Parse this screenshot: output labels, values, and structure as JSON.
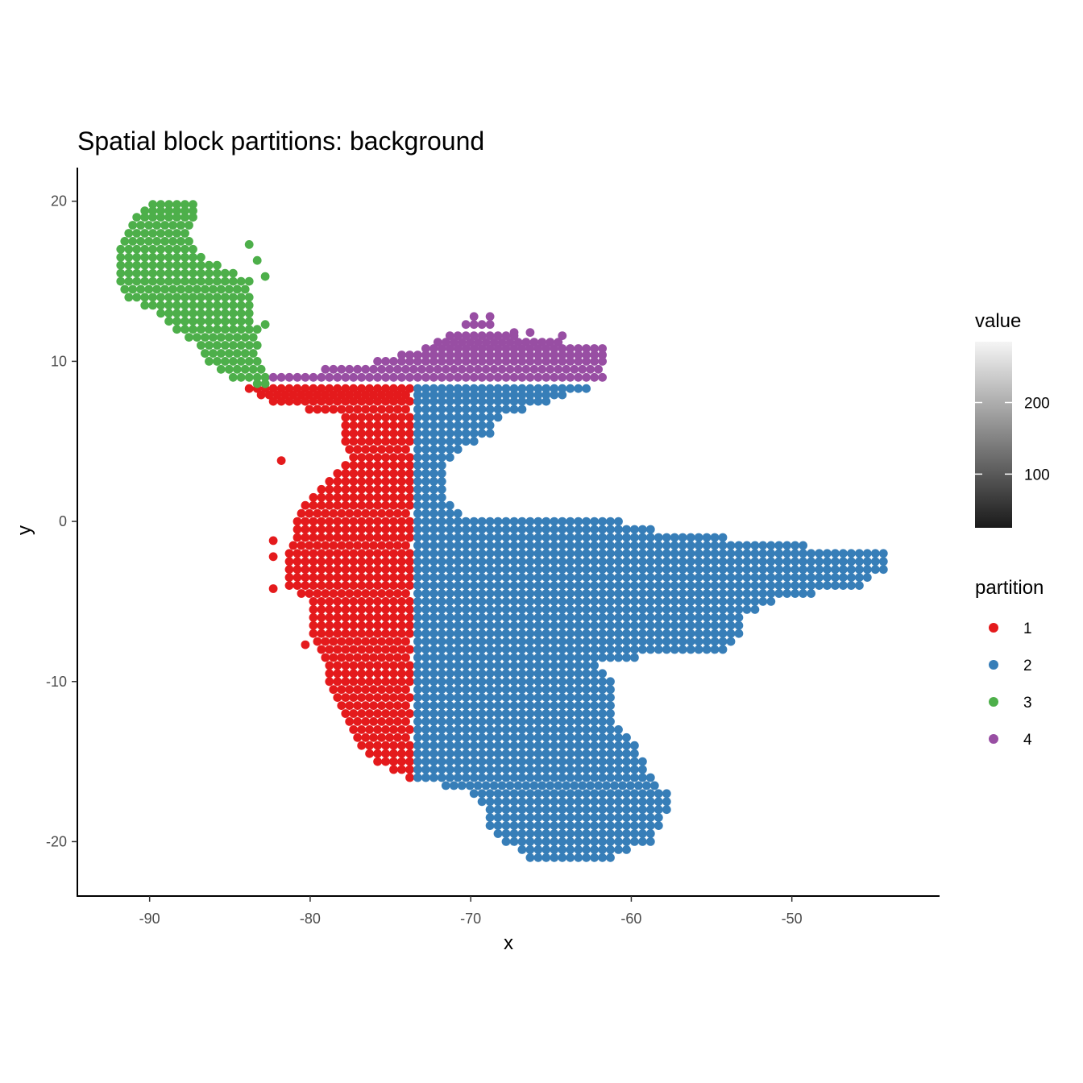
{
  "chart_data": {
    "type": "scatter",
    "title": "Spatial block partitions: background",
    "xlabel": "x",
    "ylabel": "y",
    "xlim": [
      -94.5,
      -40.8
    ],
    "ylim": [
      -23.4,
      22.1
    ],
    "x_ticks": [
      -90,
      -80,
      -70,
      -60,
      -50
    ],
    "y_ticks": [
      20,
      10,
      0,
      -10,
      -20
    ],
    "grid": false,
    "grid_step": 0.5,
    "partition_legend": {
      "title": "partition",
      "placement": "right",
      "entries": [
        {
          "label": "1",
          "color": "#E41A1C"
        },
        {
          "label": "2",
          "color": "#377EB8"
        },
        {
          "label": "3",
          "color": "#4DAF4A"
        },
        {
          "label": "4",
          "color": "#984EA3"
        }
      ]
    },
    "value_legend": {
      "title": "value",
      "placement": "right",
      "ticks": [
        "200",
        "100"
      ],
      "tick_values": [
        200,
        100
      ],
      "range": [
        25,
        285
      ],
      "colors": [
        "#1a1a1a",
        "#f5f5f5"
      ]
    },
    "series": [
      {
        "name": "1",
        "color": "#E41A1C",
        "points_note": "cells west of x = -73.5 and south of y = 8.3",
        "extent_rows": [
          [
            8.3,
            -83.8,
            -73.6
          ],
          [
            7.5,
            -82.3,
            -73.6
          ],
          [
            6.5,
            -77.8,
            -73.6
          ],
          [
            5.0,
            -77.8,
            -73.6
          ],
          [
            4.0,
            -77.3,
            -73.6
          ],
          [
            3.0,
            -78.3,
            -73.6
          ],
          [
            2.0,
            -79.3,
            -73.6
          ],
          [
            1.0,
            -80.3,
            -73.6
          ],
          [
            0.0,
            -80.8,
            -73.6
          ],
          [
            -1.0,
            -80.8,
            -73.6
          ],
          [
            -2.0,
            -81.3,
            -73.6
          ],
          [
            -3.0,
            -81.3,
            -73.6
          ],
          [
            -4.0,
            -81.3,
            -73.6
          ],
          [
            -5.0,
            -79.8,
            -73.6
          ],
          [
            -6.0,
            -79.8,
            -73.6
          ],
          [
            -7.0,
            -79.8,
            -73.6
          ],
          [
            -8.0,
            -79.3,
            -73.6
          ],
          [
            -9.0,
            -78.8,
            -73.6
          ],
          [
            -10.0,
            -78.8,
            -73.6
          ],
          [
            -11.0,
            -78.3,
            -73.6
          ],
          [
            -12.0,
            -77.8,
            -73.6
          ],
          [
            -13.0,
            -77.3,
            -73.6
          ],
          [
            -14.0,
            -76.8,
            -73.6
          ],
          [
            -15.0,
            -75.8,
            -73.6
          ],
          [
            -16.0,
            -73.8,
            -73.6
          ]
        ],
        "extra_points": [
          [
            -81.8,
            3.8
          ],
          [
            -82.3,
            -1.2
          ],
          [
            -82.3,
            -2.2
          ],
          [
            -82.3,
            -4.2
          ],
          [
            -80.3,
            -7.7
          ]
        ]
      },
      {
        "name": "2",
        "color": "#377EB8",
        "points_note": "cells east of x = -73.5 and south of y = 8.3",
        "extent_rows": [
          [
            8.3,
            -73.3,
            -62.8
          ],
          [
            7.5,
            -73.3,
            -65.3
          ],
          [
            6.5,
            -73.3,
            -68.3
          ],
          [
            5.5,
            -73.3,
            -68.8
          ],
          [
            4.5,
            -73.3,
            -70.8
          ],
          [
            3.5,
            -73.3,
            -71.8
          ],
          [
            2.5,
            -73.3,
            -71.8
          ],
          [
            1.5,
            -73.3,
            -71.8
          ],
          [
            0.5,
            -73.3,
            -70.8
          ],
          [
            0.0,
            -73.3,
            -60.8
          ],
          [
            -0.5,
            -73.3,
            -58.8
          ],
          [
            -1.0,
            -73.3,
            -54.3
          ],
          [
            -2.0,
            -73.3,
            -44.3
          ],
          [
            -3.0,
            -73.3,
            -44.3
          ],
          [
            -4.0,
            -73.3,
            -45.8
          ],
          [
            -5.0,
            -73.3,
            -51.3
          ],
          [
            -6.0,
            -73.3,
            -53.3
          ],
          [
            -7.0,
            -73.3,
            -53.3
          ],
          [
            -8.0,
            -73.3,
            -54.3
          ],
          [
            -8.5,
            -73.3,
            -59.8
          ],
          [
            -9.0,
            -73.3,
            -62.3
          ],
          [
            -10.0,
            -73.3,
            -61.3
          ],
          [
            -11.0,
            -73.3,
            -61.3
          ],
          [
            -12.0,
            -73.3,
            -61.3
          ],
          [
            -13.0,
            -73.3,
            -60.8
          ],
          [
            -14.0,
            -73.3,
            -59.8
          ],
          [
            -15.0,
            -73.3,
            -59.3
          ],
          [
            -16.0,
            -73.3,
            -58.8
          ],
          [
            -17.0,
            -69.8,
            -57.8
          ],
          [
            -18.0,
            -68.8,
            -57.8
          ],
          [
            -19.0,
            -68.8,
            -58.3
          ],
          [
            -20.0,
            -67.8,
            -58.8
          ],
          [
            -20.5,
            -66.8,
            -60.3
          ],
          [
            -21.0,
            -66.3,
            -61.3
          ]
        ]
      },
      {
        "name": "3",
        "color": "#4DAF4A",
        "points_note": "cells west of x = -82.8 and north of y = 8.3",
        "extent_rows": [
          [
            19.8,
            -89.8,
            -87.3
          ],
          [
            19.0,
            -90.8,
            -87.3
          ],
          [
            18.0,
            -91.3,
            -87.8
          ],
          [
            17.0,
            -91.8,
            -87.3
          ],
          [
            16.0,
            -91.8,
            -85.8
          ],
          [
            15.0,
            -91.8,
            -83.8
          ],
          [
            14.0,
            -91.3,
            -83.8
          ],
          [
            13.0,
            -89.3,
            -83.8
          ],
          [
            12.0,
            -88.3,
            -83.3
          ],
          [
            11.0,
            -86.8,
            -83.3
          ],
          [
            10.0,
            -86.3,
            -83.3
          ],
          [
            9.0,
            -84.8,
            -82.8
          ],
          [
            8.6,
            -83.3,
            -82.8
          ]
        ],
        "extra_points": [
          [
            -83.8,
            17.3
          ],
          [
            -83.3,
            16.3
          ],
          [
            -82.8,
            15.3
          ],
          [
            -82.8,
            12.3
          ]
        ]
      },
      {
        "name": "4",
        "color": "#984EA3",
        "points_note": "cells east of x = -82.8 and north of y = 8.3",
        "extent_rows": [
          [
            9.0,
            -82.3,
            -61.8
          ],
          [
            10.0,
            -75.8,
            -61.8
          ],
          [
            10.8,
            -72.8,
            -61.8
          ],
          [
            11.6,
            -71.3,
            -67.3
          ],
          [
            12.3,
            -70.3,
            -68.8
          ]
        ],
        "extra_points": [
          [
            -69.8,
            12.8
          ],
          [
            -68.8,
            12.8
          ],
          [
            -64.3,
            11.6
          ],
          [
            -66.3,
            11.8
          ],
          [
            -67.3,
            11.8
          ]
        ]
      }
    ]
  }
}
